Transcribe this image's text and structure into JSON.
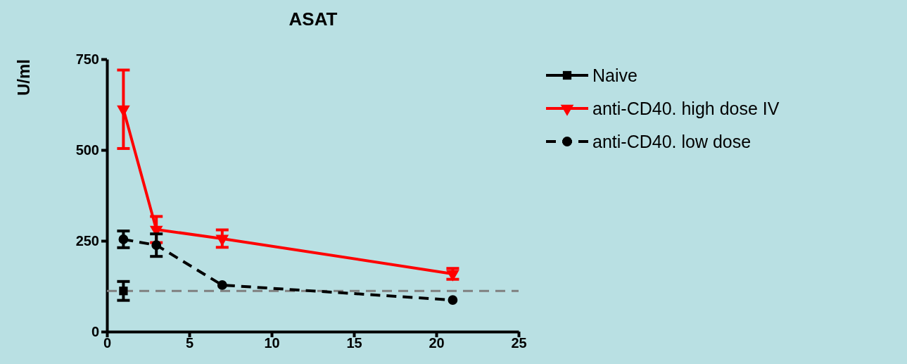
{
  "chart_data": {
    "type": "line",
    "title": "ASAT",
    "ylabel": "U/ml",
    "xlim": [
      0,
      25
    ],
    "xticks": [
      0,
      5,
      10,
      15,
      20,
      25
    ],
    "ylim": [
      0,
      750
    ],
    "yticks": [
      0,
      250,
      500,
      750
    ],
    "grid": false,
    "legend": "top right",
    "series": [
      {
        "name": "Naive",
        "color": "#000000",
        "x": [
          1
        ],
        "values": [
          112
        ],
        "errors": [
          26
        ],
        "marker": "square",
        "line_style": "solid"
      },
      {
        "name": "anti-CD40. high dose IV",
        "color": "#ff0000",
        "x": [
          1,
          3,
          7,
          21
        ],
        "values": [
          612,
          281,
          256,
          159
        ],
        "errors": [
          108,
          36,
          24,
          15
        ],
        "marker": "triangle",
        "line_style": "solid"
      },
      {
        "name": "anti-CD40. low dose",
        "color": "#000000",
        "x": [
          1,
          3,
          7,
          21
        ],
        "values": [
          254,
          238,
          128,
          87
        ],
        "errors": [
          23,
          31,
          null,
          null
        ],
        "marker": "circle",
        "line_style": "dashed"
      }
    ],
    "ref_lines": [
      {
        "axis": "y",
        "value": 112,
        "color": "#808080",
        "line_style": "dashed"
      }
    ]
  }
}
